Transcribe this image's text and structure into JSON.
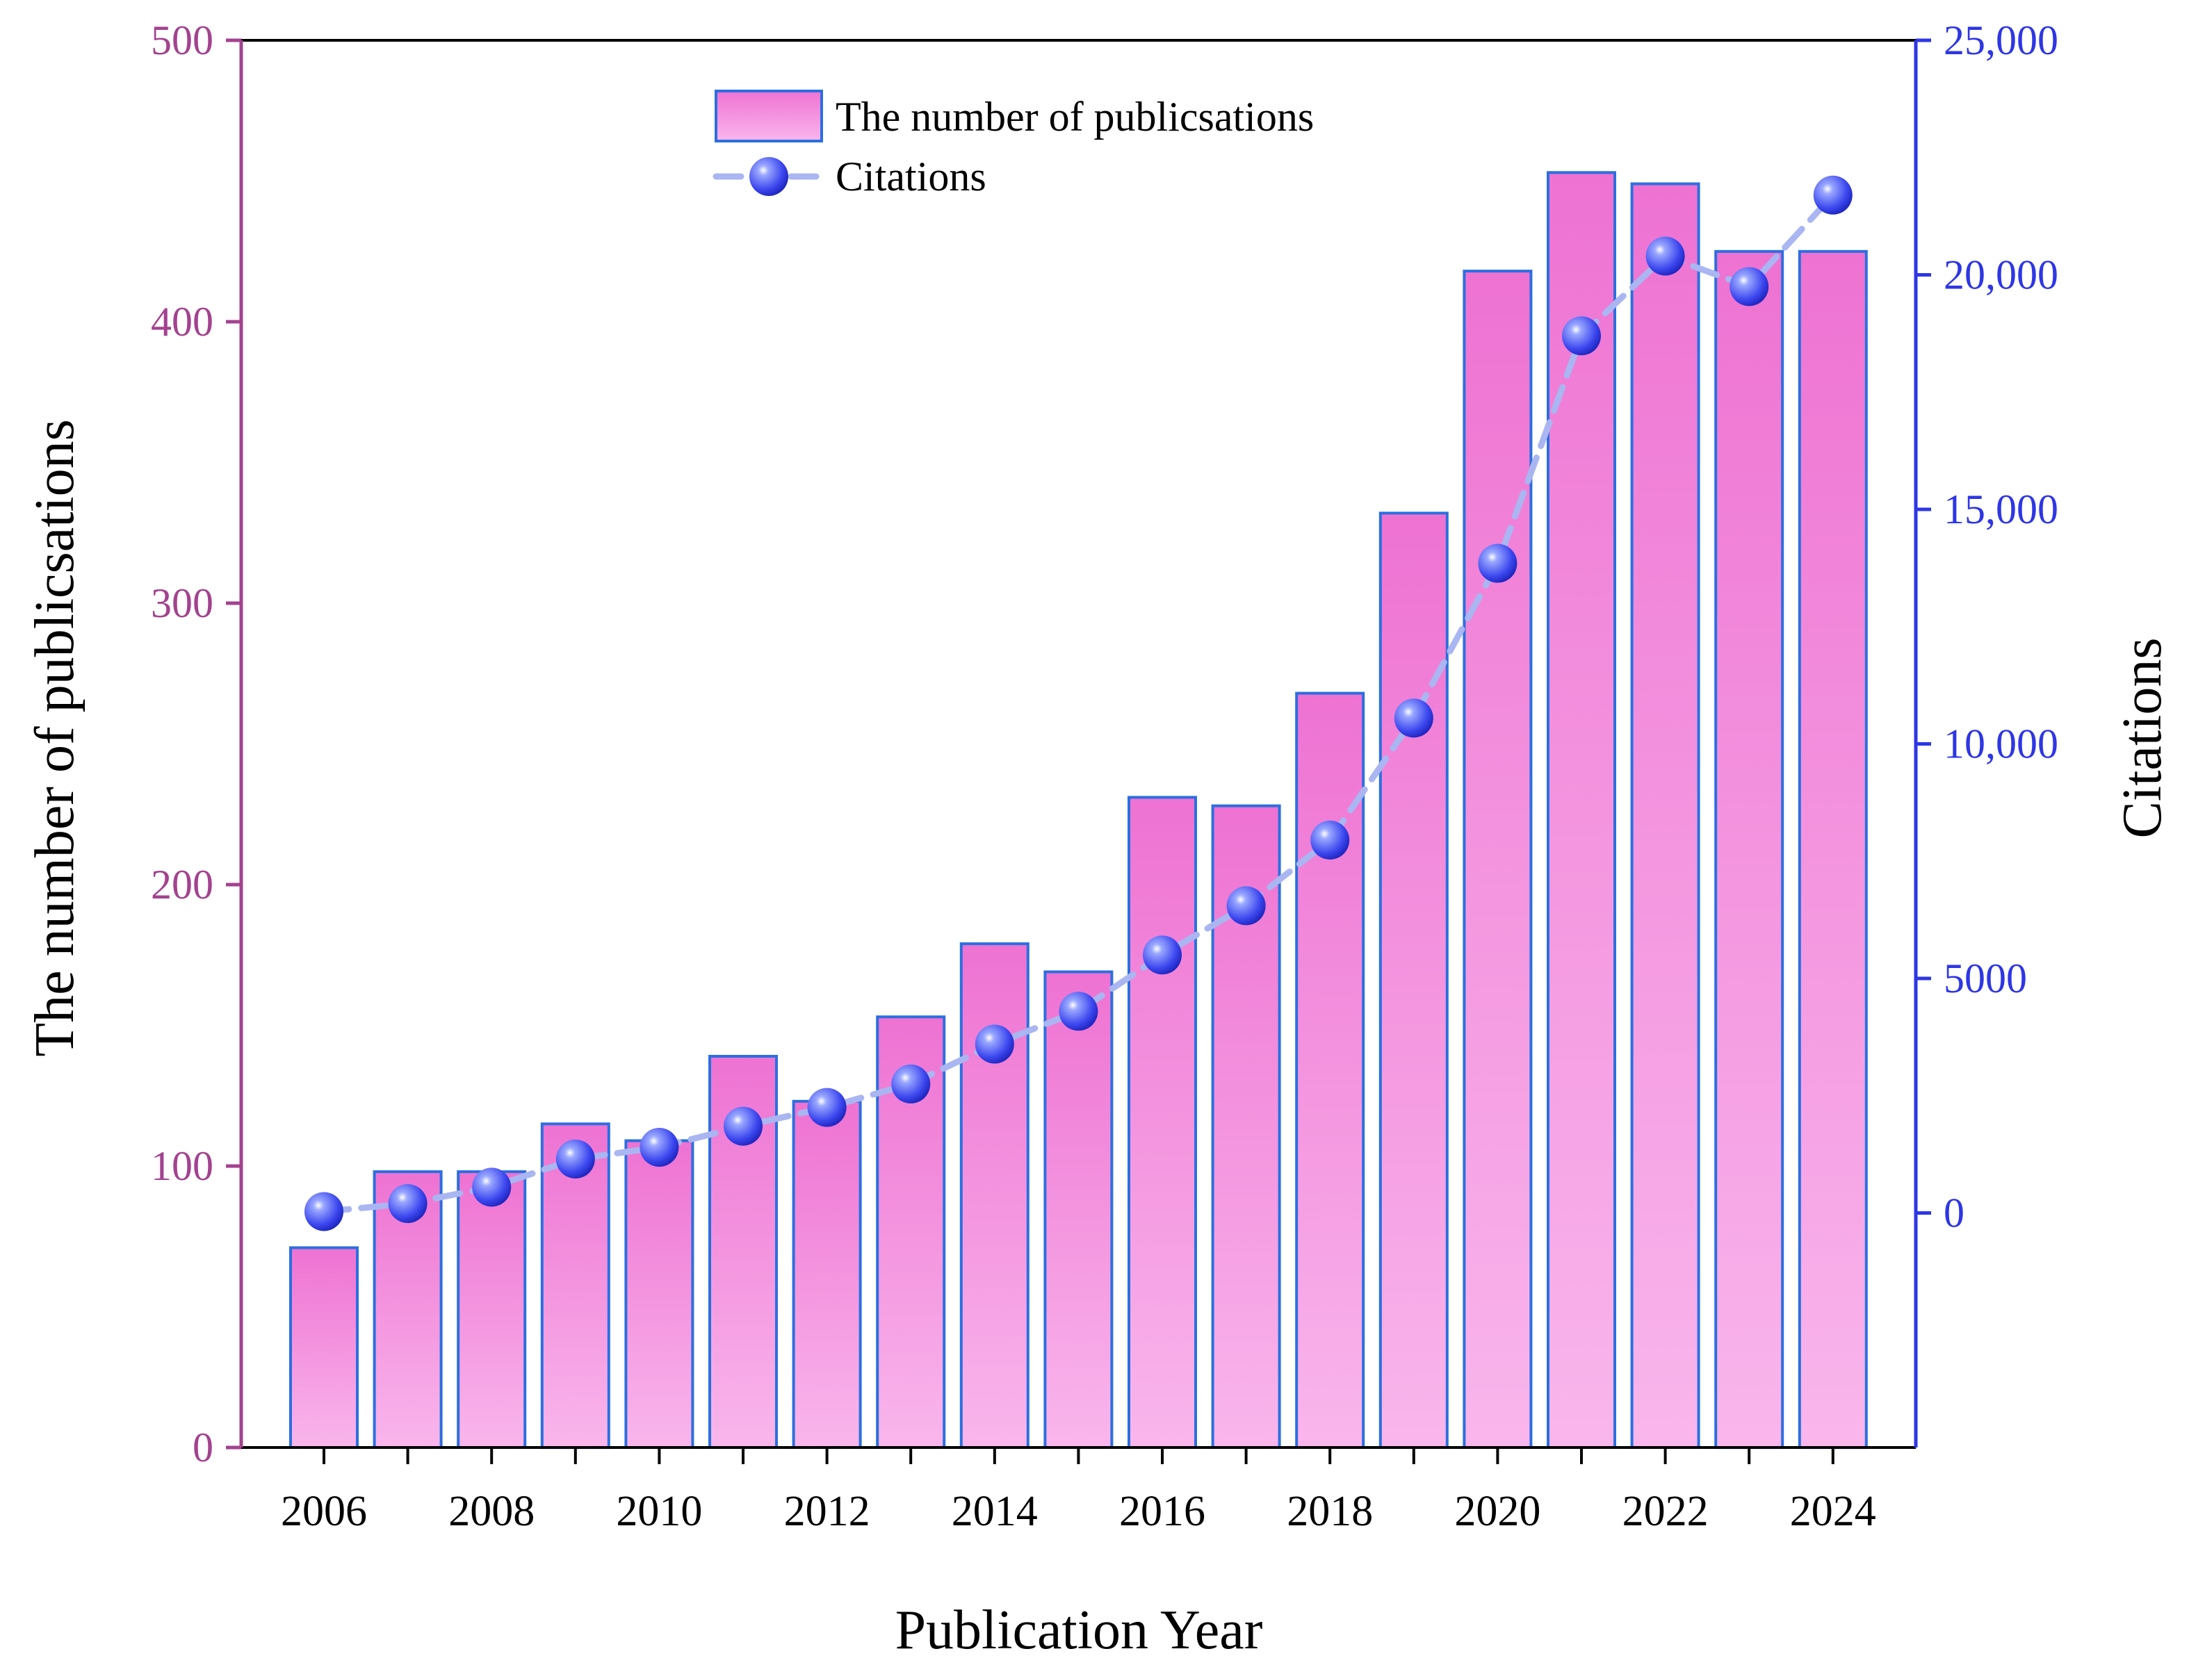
{
  "chart_data": {
    "type": "bar+line",
    "title": "",
    "xlabel": "Publication Year",
    "ylabel_left": "The number of publicsations",
    "ylabel_right": "Citations",
    "ylim_left": [
      0,
      500
    ],
    "ylim_right": [
      -5000,
      25000
    ],
    "left_ticks": [
      0,
      100,
      200,
      300,
      400,
      500
    ],
    "left_tick_labels": [
      "0",
      "100",
      "200",
      "300",
      "400",
      "500"
    ],
    "right_ticks": [
      0,
      5000,
      10000,
      15000,
      20000,
      25000
    ],
    "right_tick_labels": [
      "0",
      "5000",
      "10,000",
      "15,000",
      "20,000",
      "25,000"
    ],
    "categories": [
      "2006",
      "2007",
      "2008",
      "2009",
      "2010",
      "2011",
      "2012",
      "2013",
      "2014",
      "2015",
      "2016",
      "2017",
      "2018",
      "2019",
      "2020",
      "2021",
      "2022",
      "2023",
      "2024"
    ],
    "x_tick_labels": [
      "2006",
      "2008",
      "2010",
      "2012",
      "2014",
      "2016",
      "2018",
      "2020",
      "2022",
      "2024"
    ],
    "series": [
      {
        "name": "The number of publicsations",
        "type": "bar",
        "axis": "left",
        "values": [
          71,
          98,
          98,
          115,
          109,
          139,
          123,
          153,
          179,
          169,
          231,
          228,
          268,
          332,
          418,
          453,
          449,
          425,
          425
        ]
      },
      {
        "name": "Citations",
        "type": "line",
        "axis": "right",
        "values": [
          30,
          200,
          550,
          1150,
          1400,
          1850,
          2250,
          2750,
          3600,
          4300,
          5500,
          6550,
          7950,
          10550,
          13850,
          18700,
          20400,
          19750,
          21700
        ]
      }
    ],
    "legend": [
      {
        "label": "The number of publicsations",
        "kind": "bar"
      },
      {
        "label": "Citations",
        "kind": "line-marker"
      }
    ],
    "legend_position": "top-center",
    "grid": false,
    "colors": {
      "bar_top": "#ee72d2",
      "bar_bottom": "#f9b6ec",
      "bar_edge": "#2b6fe0",
      "line": "#a9b6f2",
      "marker_dark": "#2a34e0",
      "marker_light": "#9aa8ff",
      "left_axis": "#a3428f",
      "right_axis": "#2e36e6"
    }
  }
}
